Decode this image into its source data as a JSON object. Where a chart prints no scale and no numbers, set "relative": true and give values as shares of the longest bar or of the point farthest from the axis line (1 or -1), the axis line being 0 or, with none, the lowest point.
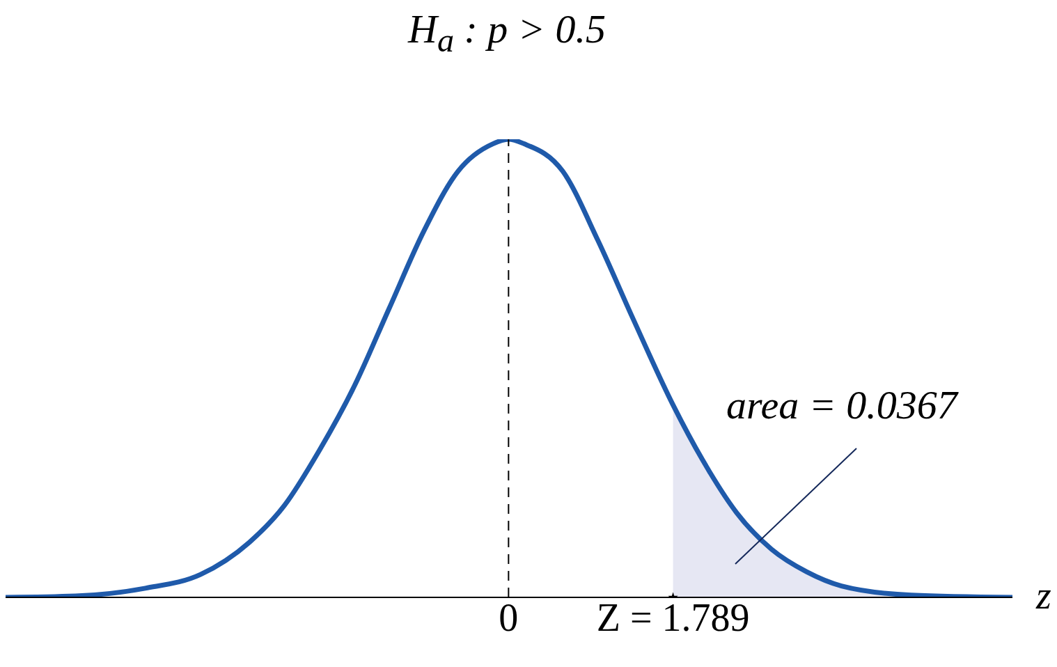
{
  "chart_data": {
    "type": "line",
    "title": "H$_{a}$ : p > 0.5",
    "xlabel": "z",
    "relative": true,
    "tick_labels": "x",
    "xlim": [
      -5.47,
      5.48
    ],
    "xticks": [
      0,
      {
        "value": 1.789,
        "label": "Z = 1.789"
      }
    ],
    "annotations": [
      "area = 0.0367"
    ],
    "ref_lines": [
      {
        "axis": "x",
        "value": 0,
        "color": "#000000",
        "line_style": "dashed"
      }
    ],
    "series": [
      {
        "type": "area",
        "color": "#e6e7f3",
        "x": [
          1.789,
          2.11,
          2.48,
          2.86,
          3.24,
          3.62,
          4.38,
          5.48
        ],
        "values": [
          0.42,
          0.3,
          0.185,
          0.105,
          0.056,
          0.025,
          0.005,
          0
        ]
      },
      {
        "color": "#1f5aaa",
        "marker": "none",
        "line_style": "solid",
        "x": [
          -5.47,
          -4.71,
          -3.95,
          -3.35,
          -2.82,
          -2.44,
          -2.06,
          -1.68,
          -1.3,
          -0.92,
          -0.55,
          -0.17,
          0,
          0.17,
          0.59,
          0.97,
          1.35,
          1.789,
          2.11,
          2.48,
          2.86,
          3.24,
          3.62,
          4.38,
          5.48
        ],
        "values": [
          0,
          0.003,
          0.02,
          0.05,
          0.12,
          0.2,
          0.32,
          0.46,
          0.63,
          0.8,
          0.93,
          0.99,
          1,
          0.99,
          0.93,
          0.78,
          0.61,
          0.42,
          0.3,
          0.185,
          0.105,
          0.056,
          0.025,
          0.005,
          0
        ]
      },
      {
        "type": "scatter",
        "color": "#000000",
        "marker": "star",
        "x": [
          1.789
        ],
        "values": [
          0
        ]
      }
    ]
  }
}
